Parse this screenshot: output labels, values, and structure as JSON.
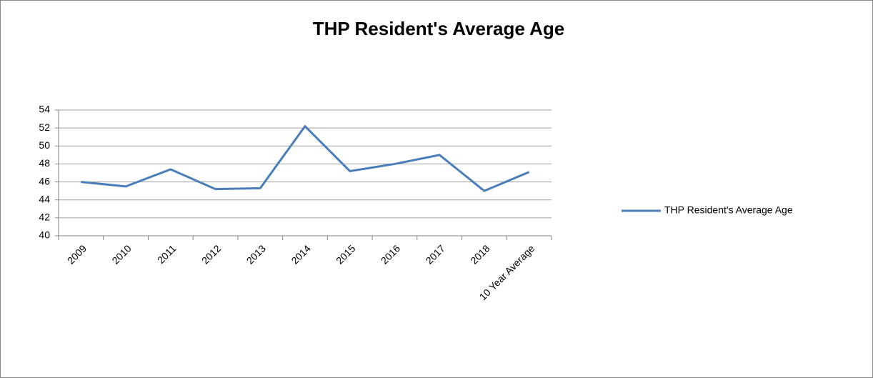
{
  "chart_data": {
    "type": "line",
    "title": "THP Resident's Average Age",
    "categories": [
      "2009",
      "2010",
      "2011",
      "2012",
      "2013",
      "2014",
      "2015",
      "2016",
      "2017",
      "2018",
      "10 Year Average"
    ],
    "series": [
      {
        "name": "THP Resident's Average Age",
        "color": "#4a7ebb",
        "values": [
          46.0,
          45.5,
          47.4,
          45.2,
          45.3,
          52.2,
          47.2,
          48.0,
          49.0,
          45.0,
          47.1
        ]
      }
    ],
    "ylim": [
      40,
      54
    ],
    "yticks": [
      40,
      42,
      44,
      46,
      48,
      50,
      52,
      54
    ],
    "grid": true,
    "legend": "right"
  }
}
